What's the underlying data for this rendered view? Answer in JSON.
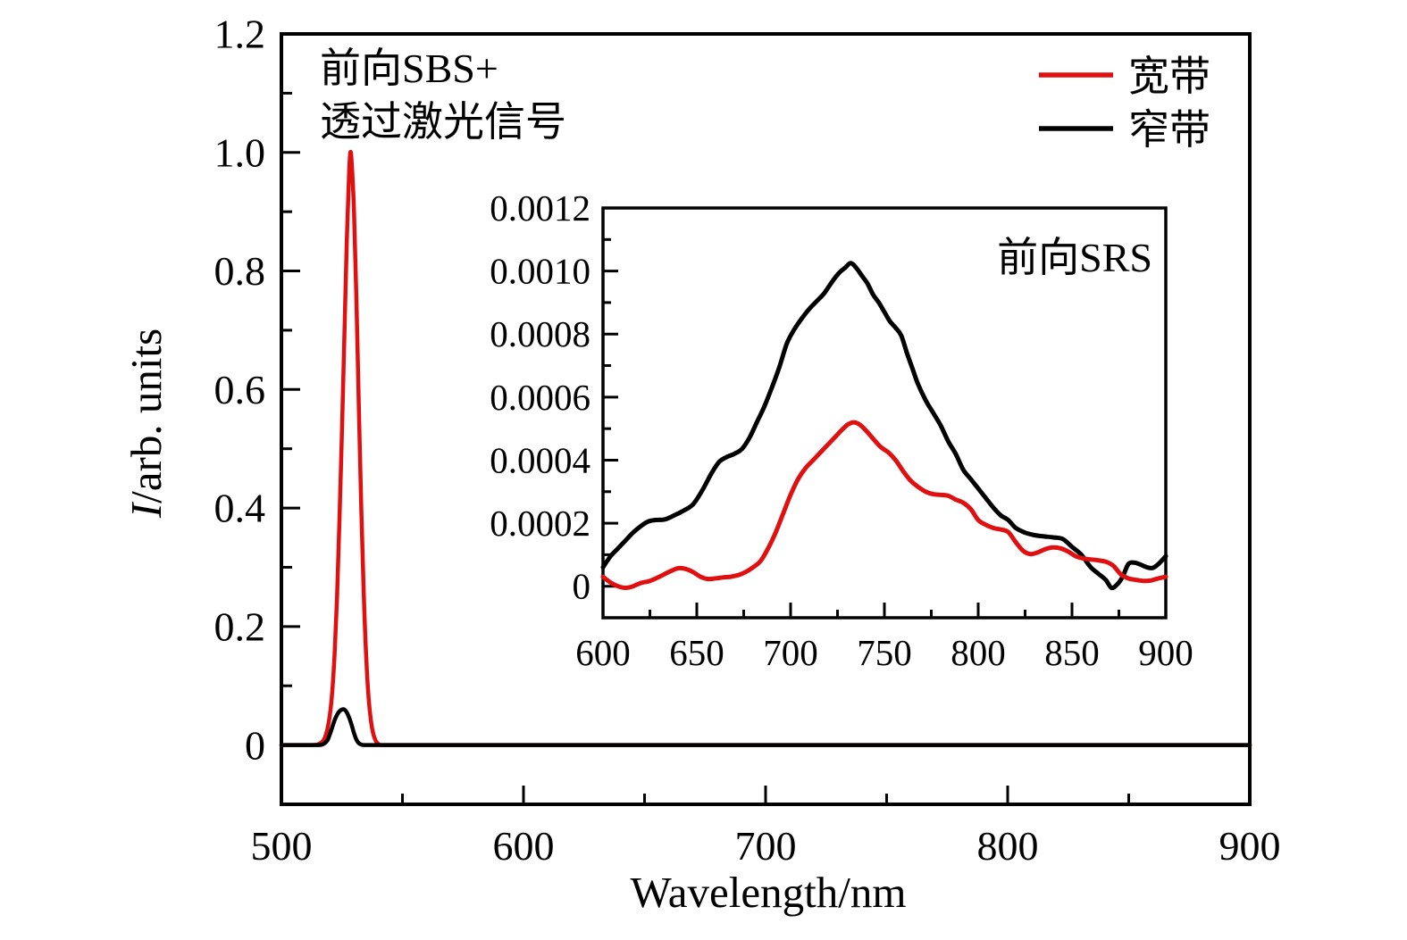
{
  "figure": {
    "background": "#ffffff",
    "accent_red": "#e01010",
    "line_black": "#000000"
  },
  "chart_data": [
    {
      "id": "main",
      "type": "line",
      "title": "",
      "xlabel": "Wavelength/nm",
      "ylabel": "I/arb. units",
      "ylabel_italic": "I",
      "ylabel_rest": "/arb. units",
      "annotation_lines": [
        "前向SBS+",
        "透过激光信号"
      ],
      "legend_position": "top-right",
      "grid": false,
      "xlim": [
        500,
        900
      ],
      "ylim": [
        -0.1,
        1.2
      ],
      "xticks": {
        "major": [
          500,
          600,
          700,
          800,
          900
        ],
        "labels": [
          "500",
          "600",
          "700",
          "800",
          "900"
        ],
        "minor": [
          550,
          650,
          750,
          850
        ]
      },
      "yticks": {
        "major": [
          0,
          0.2,
          0.4,
          0.6,
          0.8,
          1.0,
          1.2
        ],
        "labels": [
          "0",
          "0.2",
          "0.4",
          "0.6",
          "0.8",
          "1.0",
          "1.2"
        ],
        "minor": [
          0.1,
          0.3,
          0.5,
          0.7,
          0.9,
          1.1
        ]
      },
      "legend": [
        {
          "key": "broadband",
          "label": "宽带",
          "color": "#e01010"
        },
        {
          "key": "narrowband",
          "label": "窄带",
          "color": "#000000"
        }
      ],
      "series": [
        {
          "key": "broadband",
          "name": "宽带",
          "color": "#e01010",
          "points": [
            [
              500,
              0
            ],
            [
              505,
              0
            ],
            [
              510,
              0
            ],
            [
              513,
              0
            ],
            [
              515,
              0.001
            ],
            [
              517,
              0.006
            ],
            [
              518,
              0.013
            ],
            [
              519,
              0.027
            ],
            [
              520,
              0.05
            ],
            [
              521,
              0.09
            ],
            [
              522,
              0.155
            ],
            [
              523,
              0.25
            ],
            [
              524,
              0.38
            ],
            [
              525,
              0.53
            ],
            [
              526,
              0.69
            ],
            [
              527,
              0.85
            ],
            [
              528,
              0.97
            ],
            [
              528.5,
              1.0
            ],
            [
              529,
              0.985
            ],
            [
              530,
              0.9
            ],
            [
              531,
              0.75
            ],
            [
              532,
              0.57
            ],
            [
              533,
              0.4
            ],
            [
              534,
              0.26
            ],
            [
              535,
              0.15
            ],
            [
              536,
              0.08
            ],
            [
              537,
              0.04
            ],
            [
              538,
              0.018
            ],
            [
              539,
              0.007
            ],
            [
              540,
              0.002
            ],
            [
              541,
              0
            ],
            [
              543,
              0
            ],
            [
              546,
              0
            ],
            [
              550,
              0
            ],
            [
              560,
              0
            ],
            [
              580,
              0
            ],
            [
              600,
              0
            ],
            [
              650,
              0
            ],
            [
              700,
              0
            ],
            [
              750,
              0
            ],
            [
              800,
              0
            ],
            [
              850,
              0
            ],
            [
              900,
              0
            ]
          ]
        },
        {
          "key": "narrowband",
          "name": "窄带",
          "color": "#000000",
          "points": [
            [
              500,
              0
            ],
            [
              510,
              0
            ],
            [
              515,
              0
            ],
            [
              517,
              0.001
            ],
            [
              519,
              0.008
            ],
            [
              520,
              0.018
            ],
            [
              521,
              0.03
            ],
            [
              522,
              0.042
            ],
            [
              523,
              0.051
            ],
            [
              524,
              0.057
            ],
            [
              525,
              0.06
            ],
            [
              526,
              0.06
            ],
            [
              527,
              0.055
            ],
            [
              528,
              0.046
            ],
            [
              529,
              0.034
            ],
            [
              530,
              0.02
            ],
            [
              531,
              0.009
            ],
            [
              532,
              0.003
            ],
            [
              533,
              0.001
            ],
            [
              534,
              0
            ],
            [
              536,
              0
            ],
            [
              540,
              0
            ],
            [
              560,
              0
            ],
            [
              600,
              0
            ],
            [
              650,
              0
            ],
            [
              700,
              0
            ],
            [
              750,
              0
            ],
            [
              800,
              0
            ],
            [
              850,
              0
            ],
            [
              900,
              0
            ]
          ]
        }
      ]
    },
    {
      "id": "inset",
      "type": "line",
      "title": "前向SRS",
      "xlabel": "",
      "ylabel": "",
      "grid": false,
      "xlim": [
        600,
        900
      ],
      "ylim": [
        -0.0001,
        0.0012
      ],
      "xticks": {
        "major": [
          600,
          650,
          700,
          750,
          800,
          850,
          900
        ],
        "labels": [
          "600",
          "650",
          "700",
          "750",
          "800",
          "850",
          "900"
        ],
        "minor": [
          625,
          675,
          725,
          775,
          825,
          875
        ]
      },
      "yticks": {
        "major": [
          0,
          0.0002,
          0.0004,
          0.0006,
          0.0008,
          0.001,
          0.0012
        ],
        "labels": [
          "0",
          "0.0002",
          "0.0004",
          "0.0006",
          "0.0008",
          "0.0010",
          "0.0012"
        ],
        "minor": [
          0.0001,
          0.0003,
          0.0005,
          0.0007,
          0.0009,
          0.0011
        ]
      },
      "series": [
        {
          "key": "narrowband",
          "name": "窄带",
          "color": "#000000",
          "points": [
            [
              600,
              6e-05
            ],
            [
              604,
              9.5e-05
            ],
            [
              608,
              0.00012
            ],
            [
              612,
              0.000145
            ],
            [
              616,
              0.00017
            ],
            [
              620,
              0.00019
            ],
            [
              624,
              0.000205
            ],
            [
              628,
              0.00021
            ],
            [
              633,
              0.000212
            ],
            [
              638,
              0.000225
            ],
            [
              643,
              0.00024
            ],
            [
              648,
              0.00026
            ],
            [
              653,
              0.000305
            ],
            [
              658,
              0.00036
            ],
            [
              662,
              0.000395
            ],
            [
              666,
              0.00041
            ],
            [
              670,
              0.00042
            ],
            [
              674,
              0.000435
            ],
            [
              678,
              0.00047
            ],
            [
              682,
              0.00052
            ],
            [
              686,
              0.00057
            ],
            [
              690,
              0.00063
            ],
            [
              694,
              0.000695
            ],
            [
              698,
              0.00077
            ],
            [
              702,
              0.000815
            ],
            [
              706,
              0.00085
            ],
            [
              710,
              0.00088
            ],
            [
              714,
              0.000905
            ],
            [
              718,
              0.00093
            ],
            [
              722,
              0.000965
            ],
            [
              726,
              0.000995
            ],
            [
              729,
              0.00101
            ],
            [
              732,
              0.001025
            ],
            [
              735,
              0.00101
            ],
            [
              738,
              0.000985
            ],
            [
              741,
              0.00096
            ],
            [
              744,
              0.000925
            ],
            [
              747,
              0.0009
            ],
            [
              750,
              0.00087
            ],
            [
              753,
              0.00084
            ],
            [
              756,
              0.00082
            ],
            [
              759,
              0.000795
            ],
            [
              762,
              0.00074
            ],
            [
              765,
              0.00069
            ],
            [
              768,
              0.00064
            ],
            [
              772,
              0.00059
            ],
            [
              776,
              0.00055
            ],
            [
              780,
              0.00051
            ],
            [
              784,
              0.00046
            ],
            [
              788,
              0.00042
            ],
            [
              792,
              0.00037
            ],
            [
              796,
              0.00034
            ],
            [
              800,
              0.00031
            ],
            [
              804,
              0.00028
            ],
            [
              808,
              0.00025
            ],
            [
              812,
              0.000225
            ],
            [
              816,
              0.00021
            ],
            [
              820,
              0.000185
            ],
            [
              825,
              0.00017
            ],
            [
              830,
              0.000162
            ],
            [
              835,
              0.000158
            ],
            [
              840,
              0.000155
            ],
            [
              845,
              0.00015
            ],
            [
              850,
              0.000125
            ],
            [
              855,
              0.0001
            ],
            [
              860,
              6e-05
            ],
            [
              864,
              4e-05
            ],
            [
              868,
              2e-05
            ],
            [
              871,
              -5e-06
            ],
            [
              874,
              5e-06
            ],
            [
              877,
              3e-05
            ],
            [
              880,
              7e-05
            ],
            [
              883,
              7.5e-05
            ],
            [
              886,
              7e-05
            ],
            [
              890,
              6e-05
            ],
            [
              893,
              5.8e-05
            ],
            [
              896,
              7e-05
            ],
            [
              900,
              9.5e-05
            ]
          ]
        },
        {
          "key": "broadband",
          "name": "宽带",
          "color": "#e01010",
          "points": [
            [
              600,
              3e-05
            ],
            [
              604,
              1.2e-05
            ],
            [
              608,
              0
            ],
            [
              612,
              -5e-06
            ],
            [
              616,
              0
            ],
            [
              620,
              1e-05
            ],
            [
              625,
              1.7e-05
            ],
            [
              630,
              3e-05
            ],
            [
              635,
              4.5e-05
            ],
            [
              640,
              5.7e-05
            ],
            [
              644,
              5.5e-05
            ],
            [
              648,
              4.5e-05
            ],
            [
              652,
              3e-05
            ],
            [
              656,
              2.3e-05
            ],
            [
              660,
              2.5e-05
            ],
            [
              664,
              2.8e-05
            ],
            [
              668,
              3e-05
            ],
            [
              672,
              3.5e-05
            ],
            [
              676,
              4.5e-05
            ],
            [
              680,
              6e-05
            ],
            [
              684,
              8e-05
            ],
            [
              688,
              0.00012
            ],
            [
              692,
              0.00017
            ],
            [
              696,
              0.00023
            ],
            [
              700,
              0.00029
            ],
            [
              704,
              0.00034
            ],
            [
              708,
              0.000375
            ],
            [
              712,
              0.0004
            ],
            [
              716,
              0.000425
            ],
            [
              720,
              0.00045
            ],
            [
              724,
              0.000475
            ],
            [
              728,
              0.0005
            ],
            [
              731,
              0.000515
            ],
            [
              734,
              0.00052
            ],
            [
              737,
              0.000512
            ],
            [
              740,
              0.000495
            ],
            [
              744,
              0.000468
            ],
            [
              748,
              0.000442
            ],
            [
              752,
              0.000425
            ],
            [
              756,
              0.0004
            ],
            [
              760,
              0.000365
            ],
            [
              764,
              0.000335
            ],
            [
              768,
              0.000315
            ],
            [
              772,
              0.0003
            ],
            [
              776,
              0.000292
            ],
            [
              780,
              0.00029
            ],
            [
              784,
              0.000287
            ],
            [
              788,
              0.000275
            ],
            [
              792,
              0.000265
            ],
            [
              796,
              0.000245
            ],
            [
              800,
              0.00021
            ],
            [
              804,
              0.000195
            ],
            [
              808,
              0.000185
            ],
            [
              812,
              0.00018
            ],
            [
              816,
              0.000172
            ],
            [
              820,
              0.00014
            ],
            [
              824,
              0.000112
            ],
            [
              828,
              0.000102
            ],
            [
              832,
              0.000108
            ],
            [
              836,
              0.000118
            ],
            [
              840,
              0.000123
            ],
            [
              844,
              0.00012
            ],
            [
              848,
              0.00011
            ],
            [
              852,
              9.5e-05
            ],
            [
              856,
              8.8e-05
            ],
            [
              860,
              8.5e-05
            ],
            [
              864,
              8.2e-05
            ],
            [
              868,
              7.8e-05
            ],
            [
              872,
              6.5e-05
            ],
            [
              876,
              3.8e-05
            ],
            [
              880,
              2.5e-05
            ],
            [
              884,
              2e-05
            ],
            [
              888,
              1.7e-05
            ],
            [
              892,
              1.8e-05
            ],
            [
              896,
              2.5e-05
            ],
            [
              900,
              3e-05
            ]
          ]
        }
      ]
    }
  ]
}
